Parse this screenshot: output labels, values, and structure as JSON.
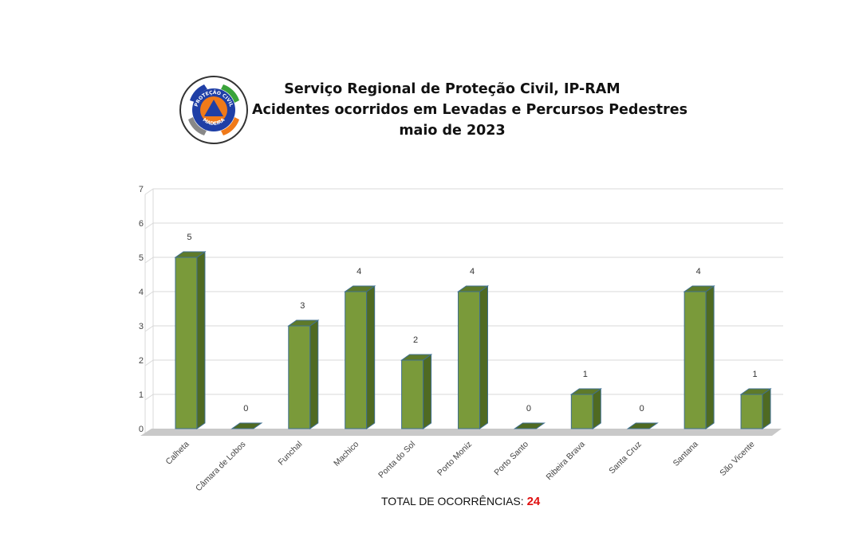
{
  "header": {
    "title_line1": "Serviço Regional de Proteção Civil, IP-RAM",
    "title_line2": "Acidentes ocorridos em Levadas e Percursos Pedestres",
    "title_line3": "maio de 2023"
  },
  "logo": {
    "top_text": "PROTEÇÃO CIVIL",
    "bottom_text": "MADEIRA",
    "icon": "civil-protection-emblem-icon"
  },
  "chart_data": {
    "type": "bar",
    "categories": [
      "Calheta",
      "Câmara de Lobos",
      "Funchal",
      "Machico",
      "Ponta do Sol",
      "Porto Moniz",
      "Porto Santo",
      "Ribeira Brava",
      "Santa Cruz",
      "Santana",
      "São Vicente"
    ],
    "values": [
      5,
      0,
      3,
      4,
      2,
      4,
      0,
      1,
      0,
      4,
      1
    ],
    "data_labels": [
      "5",
      "0",
      "3",
      "4",
      "2",
      "4",
      "0",
      "1",
      "0",
      "4",
      "1"
    ],
    "y_ticks": [
      "0",
      "1",
      "2",
      "3",
      "4",
      "5",
      "6",
      "7"
    ],
    "ylim": [
      0,
      7
    ],
    "grid": true,
    "legend": "none",
    "bar_color": "#7a9a3a",
    "bar_side_color": "#4f6a22",
    "bar_top_color": "#5e7a2a",
    "bar_edge_color": "#3f6f8f"
  },
  "footer": {
    "total_label": "TOTAL DE OCORRÊNCIAS:",
    "total_value": "24",
    "total_color": "#e01010"
  }
}
